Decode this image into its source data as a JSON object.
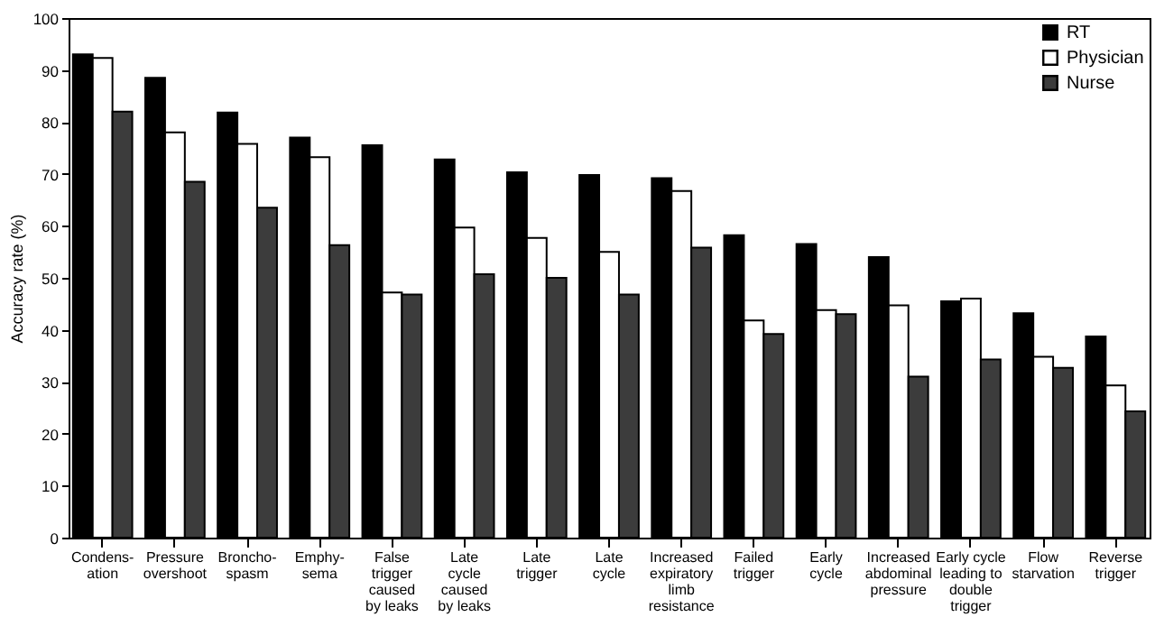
{
  "chart_data": {
    "type": "bar",
    "ylabel": "Accuracy rate (%)",
    "categories": [
      "Condens-\nation",
      "Pressure\novershoot",
      "Broncho-\nspasm",
      "Emphy-\nsema",
      "False\ntrigger\ncaused\nby leaks",
      "Late\ncycle\ncaused\nby leaks",
      "Late\ntrigger",
      "Late\ncycle",
      "Increased\nexpiratory\nlimb\nresistance",
      "Failed\ntrigger",
      "Early\ncycle",
      "Increased\nabdominal\npressure",
      "Early cycle\nleading to\ndouble\ntrigger",
      "Flow\nstarvation",
      "Reverse\ntrigger"
    ],
    "series": [
      {
        "name": "RT",
        "color": "#000000",
        "values": [
          93,
          88.5,
          81.8,
          77,
          75.5,
          72.8,
          70.3,
          69.8,
          69.2,
          58.2,
          56.5,
          54,
          45.5,
          43.2,
          38.7
        ]
      },
      {
        "name": "Physician",
        "color": "#ffffff",
        "values": [
          92.3,
          78,
          75.8,
          73.2,
          47.2,
          59.7,
          57.7,
          55,
          66.7,
          41.8,
          43.8,
          44.7,
          46,
          34.8,
          29.3
        ]
      },
      {
        "name": "Nurse",
        "color": "#3c3c3c",
        "values": [
          82,
          68.5,
          63.5,
          56.3,
          46.8,
          50.7,
          50,
          46.8,
          55.8,
          39.2,
          43,
          31,
          34.3,
          32.7,
          24.3
        ]
      }
    ],
    "ylim": [
      0,
      100
    ],
    "yticks": [
      0,
      10,
      20,
      30,
      40,
      50,
      60,
      70,
      80,
      90,
      100
    ],
    "grid": false,
    "legend": "top right"
  }
}
